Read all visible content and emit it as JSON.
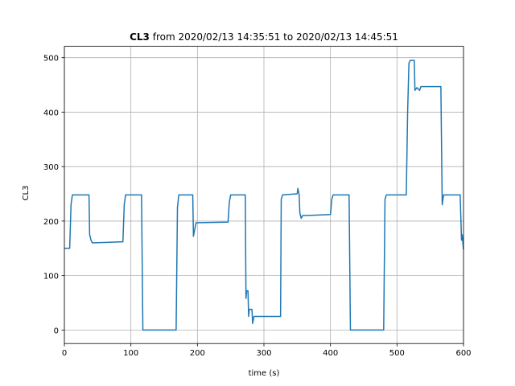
{
  "chart_data": {
    "type": "line",
    "title_bold": "CL3",
    "title": "from 2020/02/13 14:35:51 to 2020/02/13 14:45:51",
    "xlabel": "time (s)",
    "ylabel": "CL3",
    "x": [
      0,
      8,
      10,
      12,
      37,
      38,
      40,
      42,
      88,
      90,
      92,
      116,
      118,
      168,
      170,
      172,
      193,
      194,
      196,
      198,
      246,
      248,
      250,
      272,
      273,
      274,
      276,
      277,
      278,
      282,
      283,
      285,
      325,
      326,
      328,
      350,
      351,
      353,
      354,
      356,
      358,
      400,
      402,
      404,
      428,
      430,
      480,
      482,
      484,
      514,
      516,
      518,
      520,
      526,
      527,
      530,
      534,
      536,
      566,
      568,
      570,
      595,
      597,
      598,
      600
    ],
    "values": [
      150,
      150,
      230,
      248,
      248,
      175,
      165,
      160,
      162,
      230,
      248,
      248,
      0,
      0,
      225,
      248,
      248,
      172,
      185,
      197,
      198,
      235,
      248,
      248,
      58,
      72,
      72,
      25,
      38,
      38,
      12,
      25,
      25,
      240,
      248,
      250,
      260,
      248,
      215,
      205,
      210,
      212,
      240,
      248,
      248,
      0,
      0,
      240,
      248,
      248,
      400,
      490,
      495,
      495,
      440,
      445,
      440,
      447,
      447,
      230,
      248,
      248,
      165,
      175,
      148
    ],
    "color": "#1f77b4",
    "xlim": [
      0,
      600
    ],
    "ylim": [
      -24.8,
      520.8
    ],
    "xticks": [
      0,
      100,
      200,
      300,
      400,
      500,
      600
    ],
    "yticks": [
      0,
      100,
      200,
      300,
      400,
      500
    ],
    "grid": true
  }
}
